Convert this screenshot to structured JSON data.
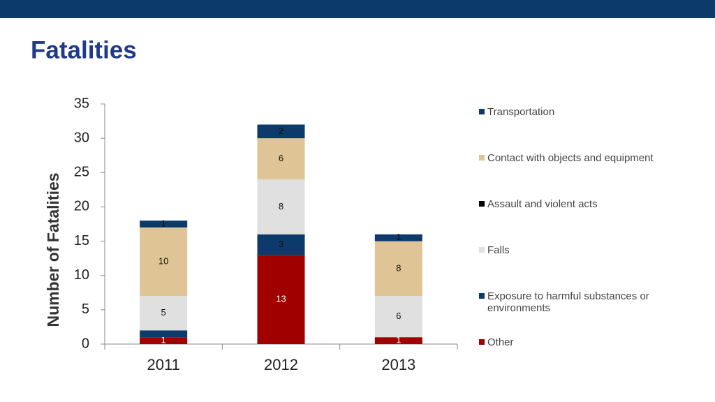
{
  "chart_data": {
    "type": "stacked_bar",
    "title": "Fatalities",
    "y_label": "Number of Fatalities",
    "categories": [
      "2011",
      "2012",
      "2013"
    ],
    "series": [
      {
        "name": "Other",
        "color": "#a00000",
        "values": [
          1,
          13,
          1
        ],
        "value_labels": [
          "1",
          "13",
          "1"
        ]
      },
      {
        "name": "Exposure to harmful substances or environments",
        "color": "#0b3a6b",
        "values": [
          1,
          3,
          0
        ],
        "value_labels": [
          null,
          "3",
          null
        ]
      },
      {
        "name": "Falls",
        "color": "#e0e0e0",
        "values": [
          5,
          8,
          6
        ],
        "value_labels": [
          "5",
          "8",
          "6"
        ]
      },
      {
        "name": "Assault and violent acts",
        "color": "#000000",
        "values": [
          0,
          0,
          0
        ],
        "value_labels": [
          null,
          null,
          null
        ]
      },
      {
        "name": "Contact with objects and equipment",
        "color": "#dfc596",
        "values": [
          10,
          6,
          8
        ],
        "value_labels": [
          "10",
          "6",
          "8"
        ]
      },
      {
        "name": "Transportation",
        "color": "#0b3a6b",
        "values": [
          1,
          2,
          1
        ],
        "value_labels": [
          "1",
          "2",
          "1"
        ]
      }
    ],
    "ylim": [
      0,
      35
    ],
    "yticks": [
      0,
      5,
      10,
      15,
      20,
      25,
      30,
      35
    ],
    "grid": false,
    "legend": "right"
  }
}
